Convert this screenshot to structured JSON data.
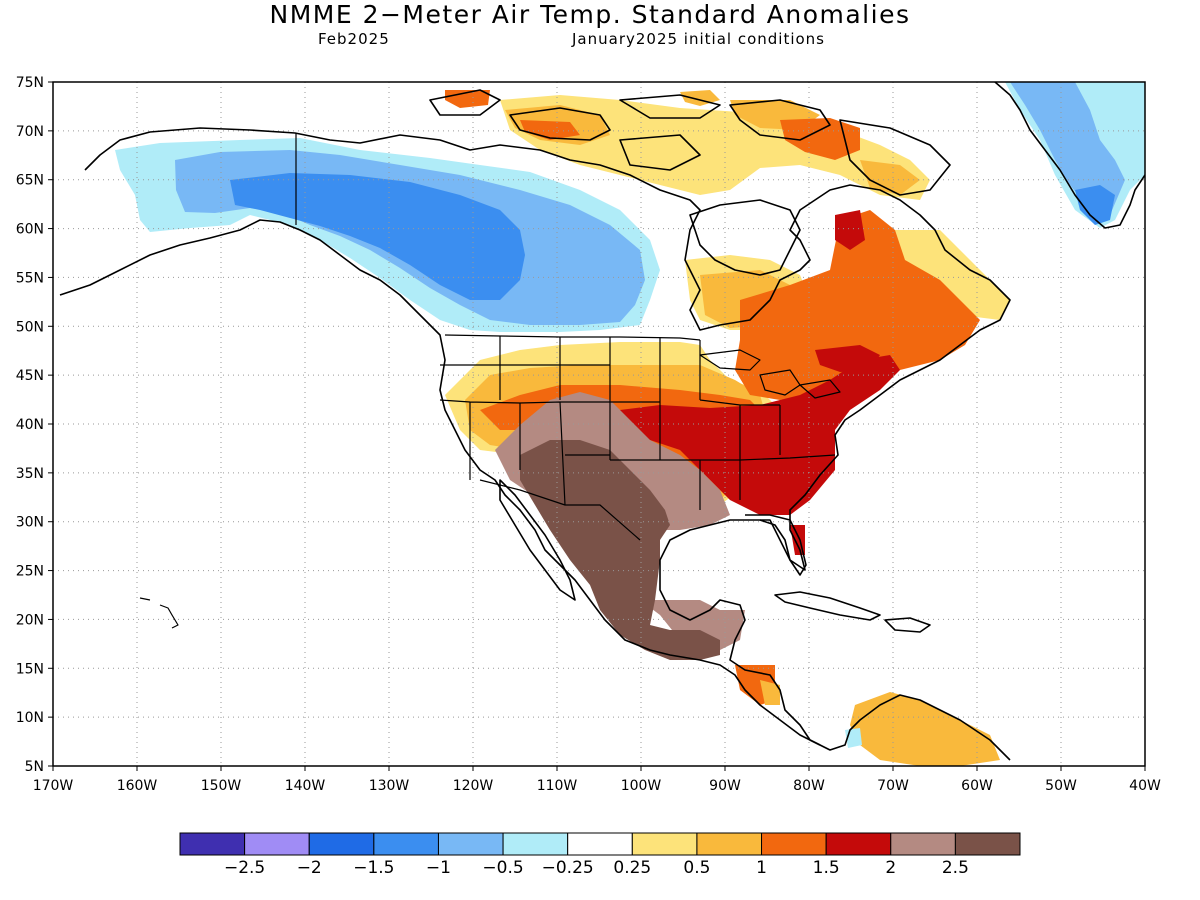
{
  "title": "NMME 2−Meter Air Temp. Standard Anomalies",
  "subtitle_left": "Feb2025",
  "subtitle_right": "January2025 initial conditions",
  "map": {
    "lon_range": [
      -170,
      -40
    ],
    "lat_range": [
      5,
      75
    ],
    "lon_ticks": [
      "170W",
      "160W",
      "150W",
      "140W",
      "130W",
      "120W",
      "110W",
      "100W",
      "90W",
      "80W",
      "70W",
      "60W",
      "50W",
      "40W"
    ],
    "lat_ticks": [
      "75N",
      "70N",
      "65N",
      "60N",
      "55N",
      "50N",
      "45N",
      "40N",
      "35N",
      "30N",
      "25N",
      "20N",
      "15N",
      "10N",
      "5N"
    ],
    "grid": "dotted",
    "land_outline_color": "#000000"
  },
  "colorbar": {
    "colors": [
      "#3f2fb0",
      "#a08cf5",
      "#1f6be6",
      "#3b8ef0",
      "#78b8f5",
      "#b0ecf8",
      "#ffffff",
      "#fde37a",
      "#f9b93c",
      "#f2680f",
      "#c40a0a",
      "#b48a82",
      "#7a5248"
    ],
    "labels": [
      "−2.5",
      "−2",
      "−1.5",
      "−1",
      "−0.5",
      "−0.25",
      "0.25",
      "0.5",
      "1",
      "1.5",
      "2",
      "2.5"
    ]
  },
  "anomaly_regions": [
    {
      "name": "alaska-yukon-cool",
      "level": "-0.5",
      "color": "#b0ecf8"
    },
    {
      "name": "western-canada-cool",
      "level": "-1",
      "color": "#78b8f5"
    },
    {
      "name": "northwest-territories-cool",
      "level": "-1.5",
      "color": "#3b8ef0"
    },
    {
      "name": "greenland-cool",
      "level": "-1",
      "color": "#78b8f5"
    },
    {
      "name": "southwest-us-mexico-warm",
      "level": "2.5",
      "color": "#7a5248"
    },
    {
      "name": "southern-us-warm",
      "level": "2",
      "color": "#c40a0a"
    },
    {
      "name": "eastern-canada-warm",
      "level": "1.5",
      "color": "#f2680f"
    },
    {
      "name": "caribbean-warm",
      "level": "0.5",
      "color": "#f9b93c"
    }
  ]
}
